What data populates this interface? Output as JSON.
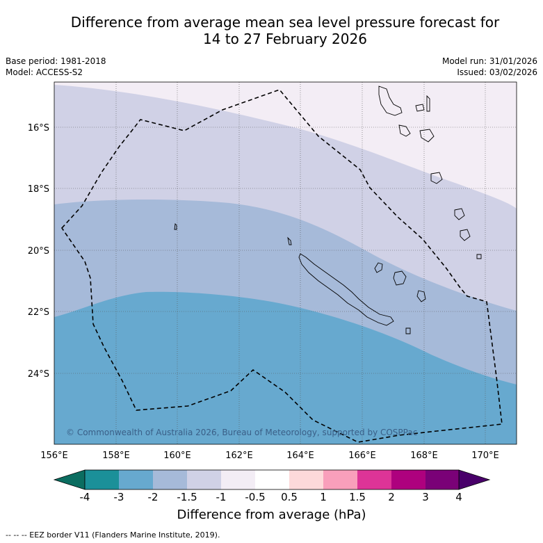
{
  "header": {
    "title_line1": "Difference from average mean sea level pressure forecast for",
    "title_line2": "14 to 27 February 2026",
    "base_period": "Base period: 1981-2018",
    "model": "Model: ACCESS-S2",
    "model_run": "Model run: 31/01/2026",
    "issued": "Issued: 03/02/2026"
  },
  "map": {
    "lon_labels": [
      "156°E",
      "158°E",
      "160°E",
      "162°E",
      "164°E",
      "166°E",
      "168°E",
      "170°E"
    ],
    "lat_labels": [
      "16°S",
      "18°S",
      "20°S",
      "22°S",
      "24°S"
    ],
    "copyright": "© Commonwealth of Australia 2026, Bureau of Meteorology, supported by COSPPac",
    "fill_colors": {
      "minus_3_to_minus_2": "#67a9cf",
      "minus_2_to_minus_1_5": "#a6bad9",
      "minus_1_5_to_minus_1": "#d0d1e6",
      "minus_1_to_minus_0_5": "#f3edf5"
    },
    "boundary_style": "black dashed EEZ border"
  },
  "colorbar": {
    "labels": [
      "-4",
      "-3",
      "-2",
      "-1.5",
      "-1",
      "-0.5",
      "0.5",
      "1",
      "1.5",
      "2",
      "3",
      "4"
    ],
    "colors": [
      "#1b9099",
      "#67a9cf",
      "#a6bad9",
      "#d0d1e6",
      "#f3edf5",
      "#ffffff",
      "#fdd9da",
      "#f99fbb",
      "#dd3497",
      "#ae017e",
      "#7a0177"
    ],
    "under_color": "#0b6d60",
    "over_color": "#49006a",
    "title": "Difference from average (hPa)"
  },
  "legend": {
    "footer": "-- -- -- EEZ border V11 (Flanders Marine Institute, 2019)."
  }
}
